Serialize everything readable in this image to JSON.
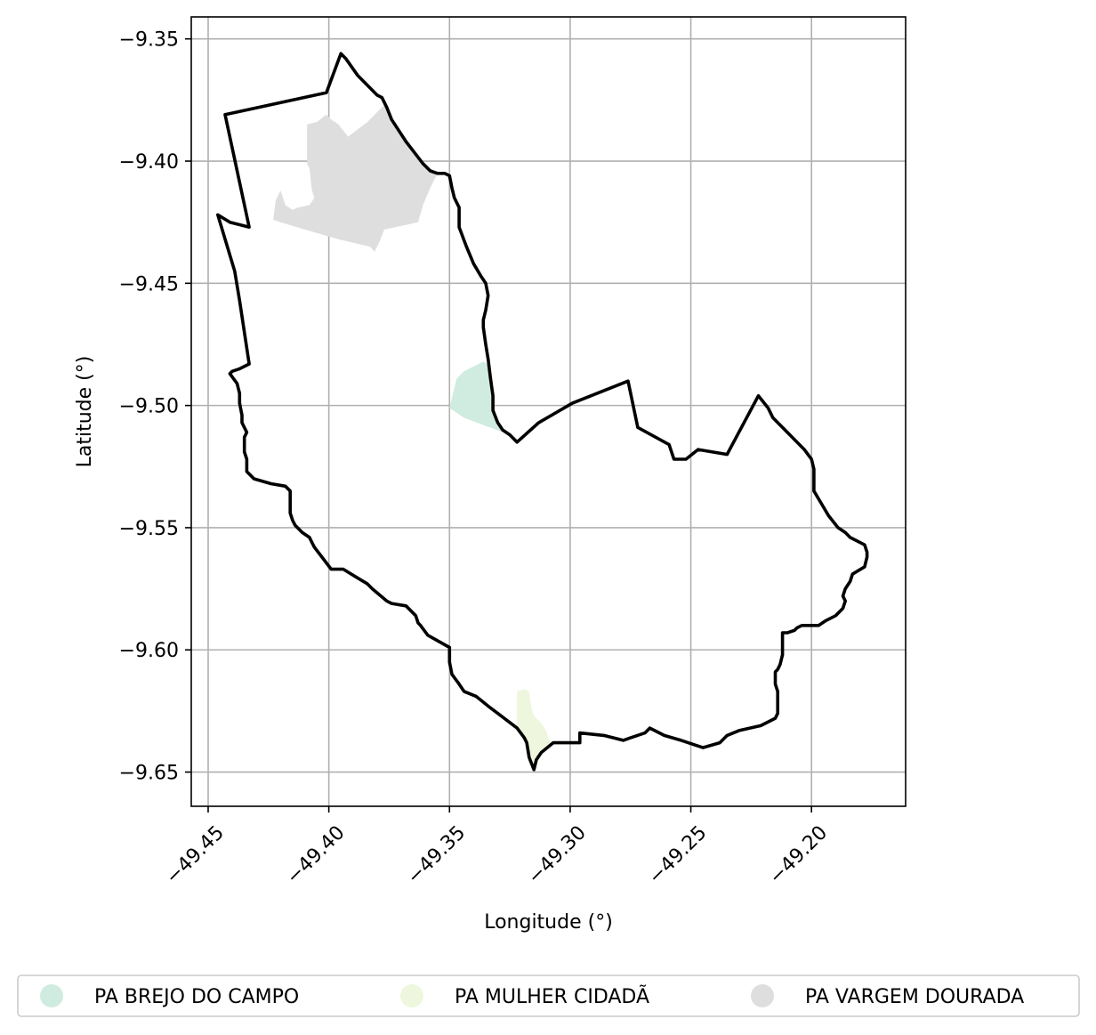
{
  "chart_data": {
    "type": "map",
    "xlabel": "Longitude (°)",
    "ylabel": "Latitude (°)",
    "xlim": [
      -49.457,
      -49.161
    ],
    "ylim": [
      -9.664,
      -9.341
    ],
    "grid": true,
    "legend_placement": "bottom-center",
    "x_ticks": [
      -49.45,
      -49.4,
      -49.35,
      -49.3,
      -49.25,
      -49.2
    ],
    "y_ticks": [
      -9.35,
      -9.4,
      -9.45,
      -9.5,
      -9.55,
      -9.6,
      -9.65
    ],
    "x_tick_labels": [
      "−49.45",
      "−49.40",
      "−49.35",
      "−49.30",
      "−49.25",
      "−49.20"
    ],
    "y_tick_labels": [
      "−9.35",
      "−9.40",
      "−9.45",
      "−9.50",
      "−9.55",
      "−9.60",
      "−9.65"
    ],
    "boundary": {
      "color": "#000000",
      "coords": [
        [
          -49.443,
          -9.381
        ],
        [
          -49.401,
          -9.372
        ],
        [
          -49.395,
          -9.356
        ],
        [
          -49.393,
          -9.358
        ],
        [
          -49.388,
          -9.365
        ],
        [
          -49.382,
          -9.371
        ],
        [
          -49.38,
          -9.373
        ],
        [
          -49.378,
          -9.374
        ],
        [
          -49.376,
          -9.378
        ],
        [
          -49.374,
          -9.383
        ],
        [
          -49.368,
          -9.392
        ],
        [
          -49.361,
          -9.401
        ],
        [
          -49.358,
          -9.404
        ],
        [
          -49.355,
          -9.405
        ],
        [
          -49.352,
          -9.405
        ],
        [
          -49.35,
          -9.406
        ],
        [
          -49.349,
          -9.411
        ],
        [
          -49.348,
          -9.415
        ],
        [
          -49.346,
          -9.419
        ],
        [
          -49.346,
          -9.427
        ],
        [
          -49.343,
          -9.435
        ],
        [
          -49.34,
          -9.442
        ],
        [
          -49.337,
          -9.447
        ],
        [
          -49.335,
          -9.45
        ],
        [
          -49.334,
          -9.455
        ],
        [
          -49.335,
          -9.461
        ],
        [
          -49.336,
          -9.465
        ],
        [
          -49.336,
          -9.468
        ],
        [
          -49.335,
          -9.475
        ],
        [
          -49.334,
          -9.481
        ],
        [
          -49.333,
          -9.489
        ],
        [
          -49.332,
          -9.496
        ],
        [
          -49.332,
          -9.502
        ],
        [
          -49.33,
          -9.507
        ],
        [
          -49.328,
          -9.51
        ],
        [
          -49.325,
          -9.512
        ],
        [
          -49.322,
          -9.515
        ],
        [
          -49.313,
          -9.507
        ],
        [
          -49.299,
          -9.499
        ],
        [
          -49.276,
          -9.49
        ],
        [
          -49.272,
          -9.509
        ],
        [
          -49.259,
          -9.516
        ],
        [
          -49.257,
          -9.522
        ],
        [
          -49.252,
          -9.522
        ],
        [
          -49.247,
          -9.518
        ],
        [
          -49.235,
          -9.52
        ],
        [
          -49.222,
          -9.496
        ],
        [
          -49.218,
          -9.501
        ],
        [
          -49.216,
          -9.505
        ],
        [
          -49.21,
          -9.511
        ],
        [
          -49.203,
          -9.518
        ],
        [
          -49.2,
          -9.522
        ],
        [
          -49.199,
          -9.526
        ],
        [
          -49.199,
          -9.535
        ],
        [
          -49.196,
          -9.54
        ],
        [
          -49.193,
          -9.545
        ],
        [
          -49.189,
          -9.55
        ],
        [
          -49.186,
          -9.552
        ],
        [
          -49.184,
          -9.554
        ],
        [
          -49.178,
          -9.557
        ],
        [
          -49.177,
          -9.56
        ],
        [
          -49.177,
          -9.562
        ],
        [
          -49.178,
          -9.566
        ],
        [
          -49.183,
          -9.569
        ],
        [
          -49.184,
          -9.572
        ],
        [
          -49.186,
          -9.575
        ],
        [
          -49.187,
          -9.578
        ],
        [
          -49.186,
          -9.58
        ],
        [
          -49.187,
          -9.583
        ],
        [
          -49.19,
          -9.586
        ],
        [
          -49.194,
          -9.588
        ],
        [
          -49.197,
          -9.59
        ],
        [
          -49.204,
          -9.59
        ],
        [
          -49.206,
          -9.591
        ],
        [
          -49.207,
          -9.592
        ],
        [
          -49.21,
          -9.593
        ],
        [
          -49.212,
          -9.593
        ],
        [
          -49.212,
          -9.597
        ],
        [
          -49.212,
          -9.602
        ],
        [
          -49.213,
          -9.606
        ],
        [
          -49.214,
          -9.608
        ],
        [
          -49.215,
          -9.609
        ],
        [
          -49.215,
          -9.614
        ],
        [
          -49.214,
          -9.617
        ],
        [
          -49.214,
          -9.626
        ],
        [
          -49.215,
          -9.628
        ],
        [
          -49.221,
          -9.631
        ],
        [
          -49.23,
          -9.633
        ],
        [
          -49.235,
          -9.635
        ],
        [
          -49.238,
          -9.638
        ],
        [
          -49.245,
          -9.64
        ],
        [
          -49.254,
          -9.637
        ],
        [
          -49.261,
          -9.635
        ],
        [
          -49.265,
          -9.633
        ],
        [
          -49.267,
          -9.632
        ],
        [
          -49.269,
          -9.634
        ],
        [
          -49.275,
          -9.636
        ],
        [
          -49.278,
          -9.637
        ],
        [
          -49.286,
          -9.635
        ],
        [
          -49.296,
          -9.634
        ],
        [
          -49.296,
          -9.638
        ],
        [
          -49.307,
          -9.638
        ],
        [
          -49.312,
          -9.642
        ],
        [
          -49.314,
          -9.645
        ],
        [
          -49.315,
          -9.649
        ],
        [
          -49.317,
          -9.644
        ],
        [
          -49.318,
          -9.638
        ],
        [
          -49.319,
          -9.636
        ],
        [
          -49.322,
          -9.632
        ],
        [
          -49.33,
          -9.626
        ],
        [
          -49.334,
          -9.623
        ],
        [
          -49.339,
          -9.619
        ],
        [
          -49.344,
          -9.617
        ],
        [
          -49.346,
          -9.614
        ],
        [
          -49.349,
          -9.61
        ],
        [
          -49.35,
          -9.605
        ],
        [
          -49.35,
          -9.599
        ],
        [
          -49.359,
          -9.594
        ],
        [
          -49.362,
          -9.59
        ],
        [
          -49.363,
          -9.589
        ],
        [
          -49.364,
          -9.586
        ],
        [
          -49.368,
          -9.582
        ],
        [
          -49.374,
          -9.581
        ],
        [
          -49.376,
          -9.58
        ],
        [
          -49.382,
          -9.575
        ],
        [
          -49.384,
          -9.573
        ],
        [
          -49.389,
          -9.57
        ],
        [
          -49.394,
          -9.567
        ],
        [
          -49.399,
          -9.567
        ],
        [
          -49.406,
          -9.558
        ],
        [
          -49.407,
          -9.556
        ],
        [
          -49.408,
          -9.554
        ],
        [
          -49.411,
          -9.552
        ],
        [
          -49.414,
          -9.549
        ],
        [
          -49.415,
          -9.547
        ],
        [
          -49.416,
          -9.544
        ],
        [
          -49.416,
          -9.541
        ],
        [
          -49.416,
          -9.535
        ],
        [
          -49.418,
          -9.533
        ],
        [
          -49.424,
          -9.532
        ],
        [
          -49.431,
          -9.53
        ],
        [
          -49.434,
          -9.527
        ],
        [
          -49.434,
          -9.522
        ],
        [
          -49.435,
          -9.519
        ],
        [
          -49.435,
          -9.513
        ],
        [
          -49.434,
          -9.511
        ],
        [
          -49.436,
          -9.507
        ],
        [
          -49.436,
          -9.504
        ],
        [
          -49.437,
          -9.499
        ],
        [
          -49.437,
          -9.495
        ],
        [
          -49.438,
          -9.491
        ],
        [
          -49.441,
          -9.487
        ],
        [
          -49.44,
          -9.486
        ],
        [
          -49.437,
          -9.485
        ],
        [
          -49.433,
          -9.483
        ],
        [
          -49.437,
          -9.457
        ],
        [
          -49.439,
          -9.445
        ],
        [
          -49.446,
          -9.422
        ],
        [
          -49.441,
          -9.425
        ],
        [
          -49.433,
          -9.427
        ],
        [
          -49.443,
          -9.381
        ]
      ]
    },
    "series": [
      {
        "name": "PA BREJO DO CAMPO",
        "color": "#d0ebdf",
        "coords": [
          [
            -49.35,
            -9.501
          ],
          [
            -49.347,
            -9.489
          ],
          [
            -49.344,
            -9.486
          ],
          [
            -49.336,
            -9.482
          ],
          [
            -49.333,
            -9.484
          ],
          [
            -49.332,
            -9.494
          ],
          [
            -49.332,
            -9.502
          ],
          [
            -49.33,
            -9.507
          ],
          [
            -49.328,
            -9.51
          ],
          [
            -49.325,
            -9.512
          ],
          [
            -49.322,
            -9.513
          ],
          [
            -49.336,
            -9.508
          ],
          [
            -49.344,
            -9.505
          ],
          [
            -49.35,
            -9.501
          ]
        ]
      },
      {
        "name": "PA MULHER CIDADÃ",
        "color": "#eef7dd",
        "coords": [
          [
            -49.322,
            -9.617
          ],
          [
            -49.319,
            -9.616
          ],
          [
            -49.317,
            -9.617
          ],
          [
            -49.316,
            -9.624
          ],
          [
            -49.315,
            -9.627
          ],
          [
            -49.312,
            -9.63
          ],
          [
            -49.31,
            -9.633
          ],
          [
            -49.309,
            -9.636
          ],
          [
            -49.308,
            -9.638
          ],
          [
            -49.312,
            -9.642
          ],
          [
            -49.314,
            -9.645
          ],
          [
            -49.315,
            -9.649
          ],
          [
            -49.317,
            -9.644
          ],
          [
            -49.318,
            -9.638
          ],
          [
            -49.319,
            -9.636
          ],
          [
            -49.322,
            -9.632
          ],
          [
            -49.322,
            -9.62
          ],
          [
            -49.322,
            -9.617
          ]
        ]
      },
      {
        "name": "PA VARGEM DOURADA",
        "color": "#dedede",
        "coords": [
          [
            -49.409,
            -9.385
          ],
          [
            -49.405,
            -9.384
          ],
          [
            -49.401,
            -9.381
          ],
          [
            -49.399,
            -9.383
          ],
          [
            -49.396,
            -9.385
          ],
          [
            -49.392,
            -9.39
          ],
          [
            -49.384,
            -9.384
          ],
          [
            -49.377,
            -9.377
          ],
          [
            -49.368,
            -9.392
          ],
          [
            -49.361,
            -9.401
          ],
          [
            -49.355,
            -9.405
          ],
          [
            -49.358,
            -9.411
          ],
          [
            -49.361,
            -9.418
          ],
          [
            -49.363,
            -9.425
          ],
          [
            -49.377,
            -9.428
          ],
          [
            -49.379,
            -9.433
          ],
          [
            -49.381,
            -9.437
          ],
          [
            -49.383,
            -9.435
          ],
          [
            -49.396,
            -9.432
          ],
          [
            -49.403,
            -9.43
          ],
          [
            -49.41,
            -9.428
          ],
          [
            -49.42,
            -9.425
          ],
          [
            -49.423,
            -9.424
          ],
          [
            -49.422,
            -9.416
          ],
          [
            -49.42,
            -9.412
          ],
          [
            -49.418,
            -9.418
          ],
          [
            -49.415,
            -9.42
          ],
          [
            -49.413,
            -9.419
          ],
          [
            -49.408,
            -9.418
          ],
          [
            -49.406,
            -9.415
          ],
          [
            -49.407,
            -9.412
          ],
          [
            -49.408,
            -9.403
          ],
          [
            -49.409,
            -9.401
          ],
          [
            -49.409,
            -9.391
          ],
          [
            -49.409,
            -9.385
          ]
        ]
      }
    ]
  }
}
